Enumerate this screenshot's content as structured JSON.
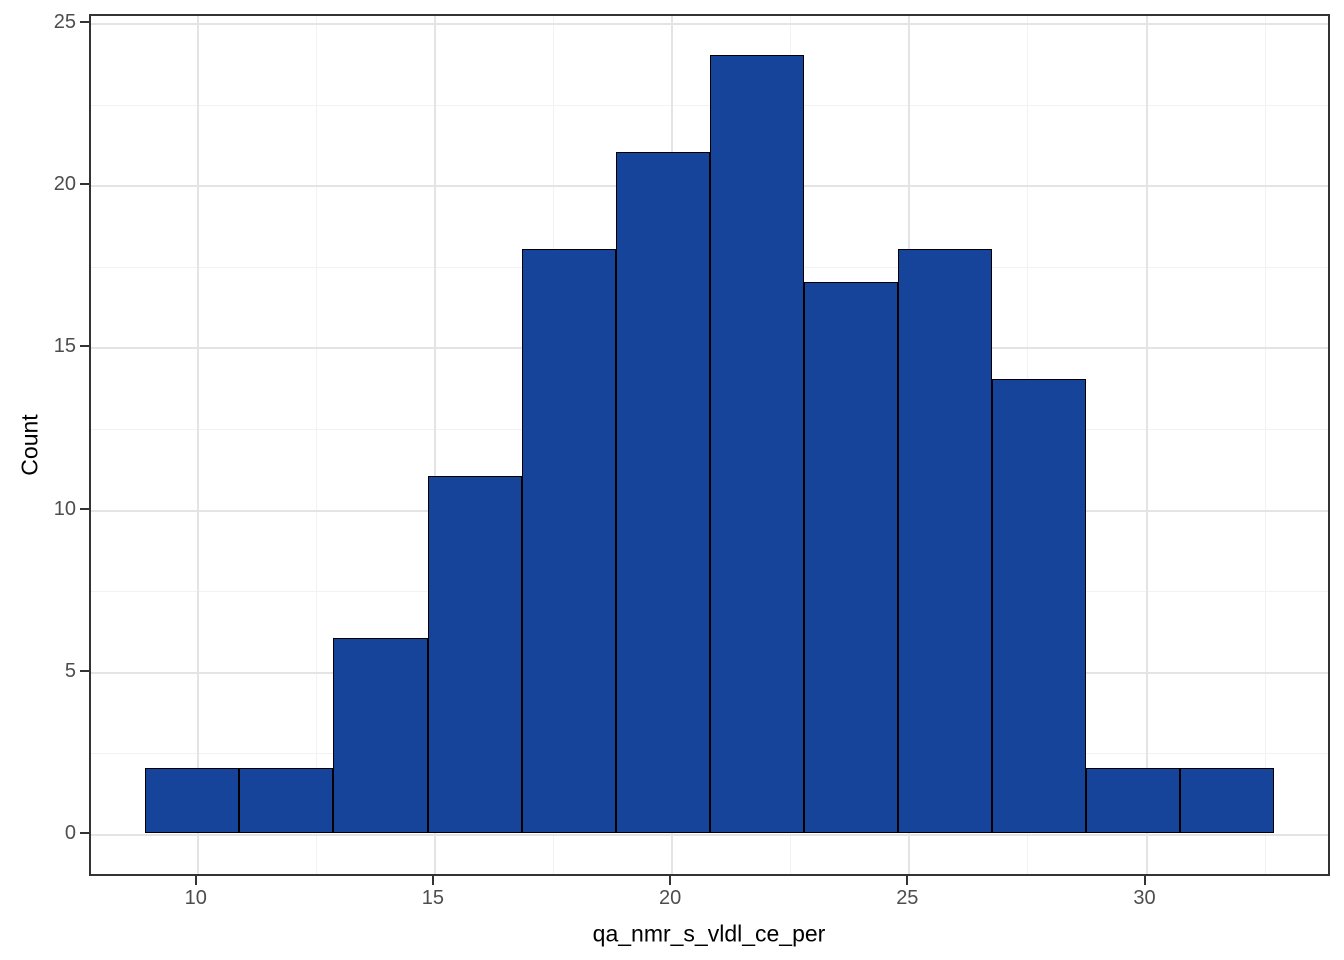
{
  "chart_data": {
    "type": "bar",
    "subtype": "histogram",
    "title": "",
    "xlabel": "qa_nmr_s_vldl_ce_per",
    "ylabel": "Count",
    "bin_start": 8.94,
    "bin_width": 1.982,
    "counts": [
      2,
      2,
      6,
      11,
      18,
      21,
      24,
      17,
      18,
      14,
      2,
      2
    ],
    "x_ticks": [
      10,
      15,
      20,
      25,
      30
    ],
    "x_minor_ticks": [
      12.5,
      17.5,
      22.5,
      27.5,
      32.5
    ],
    "y_ticks": [
      0,
      5,
      10,
      15,
      20,
      25
    ],
    "y_minor_ticks": [
      2.5,
      7.5,
      12.5,
      17.5,
      22.5
    ],
    "xlim": [
      7.75,
      33.91
    ],
    "ylim": [
      -1.33,
      25.25
    ],
    "grid": true,
    "legend": "none",
    "colors": {
      "bar_fill": "#17449B",
      "bar_stroke": "#000000",
      "grid_major": "#E4E4E4",
      "grid_minor": "#F2F2F2",
      "panel_border": "#333333",
      "tick_mark": "#333333",
      "tick_label": "#4D4D4D",
      "axis_title": "#000000",
      "background": "#FFFFFF"
    }
  }
}
